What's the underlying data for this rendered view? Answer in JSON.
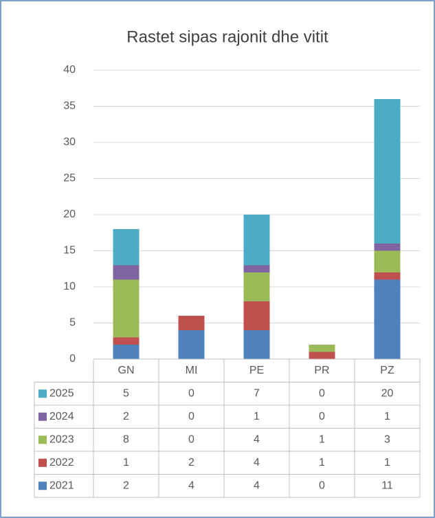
{
  "chart_data": {
    "type": "bar",
    "stacked": true,
    "title": "Rastet sipas rajonit dhe vitit",
    "categories": [
      "GN",
      "MI",
      "PE",
      "PR",
      "PZ"
    ],
    "series": [
      {
        "name": "2021",
        "color": "#4f81bd",
        "values": [
          2,
          4,
          4,
          0,
          11
        ]
      },
      {
        "name": "2022",
        "color": "#c0504d",
        "values": [
          1,
          2,
          4,
          1,
          1
        ]
      },
      {
        "name": "2023",
        "color": "#9bbb59",
        "values": [
          8,
          0,
          4,
          1,
          3
        ]
      },
      {
        "name": "2024",
        "color": "#8064a2",
        "values": [
          2,
          0,
          1,
          0,
          1
        ]
      },
      {
        "name": "2025",
        "color": "#4bacc6",
        "values": [
          5,
          0,
          7,
          0,
          20
        ]
      }
    ],
    "ylim": [
      0,
      40
    ],
    "yticks": [
      0,
      5,
      10,
      15,
      20,
      25,
      30,
      35,
      40
    ],
    "grid": true,
    "data_table": true
  }
}
